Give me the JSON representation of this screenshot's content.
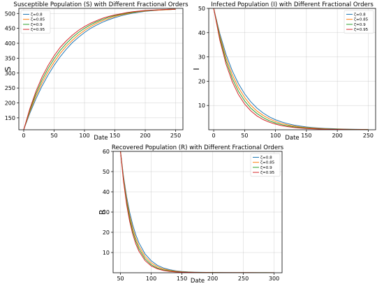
{
  "chart_data": [
    {
      "type": "line",
      "title": "Susceptible Population (S) with Different Fractional Orders",
      "xlabel": "Date",
      "ylabel": "S",
      "xlim": [
        -8,
        262
      ],
      "ylim": [
        110,
        517
      ],
      "xticks": [
        0,
        50,
        100,
        150,
        200,
        250
      ],
      "yticks": [
        150,
        200,
        250,
        300,
        350,
        400,
        450,
        500
      ],
      "grid": true,
      "legend": "top-left",
      "x": [
        0,
        10,
        20,
        30,
        40,
        50,
        60,
        70,
        80,
        90,
        100,
        110,
        120,
        130,
        140,
        150,
        160,
        170,
        180,
        190,
        200,
        210,
        220,
        230,
        240,
        250
      ],
      "series": [
        {
          "name": "ζ=0.8",
          "color": "#1f77b4",
          "values": [
            110,
            165,
            213,
            256,
            293,
            326,
            355,
            380,
            402,
            420,
            436,
            450,
            461,
            471,
            479,
            486,
            492,
            497,
            501,
            504,
            507,
            509,
            511,
            512,
            513,
            514
          ]
        },
        {
          "name": "ζ=0.85",
          "color": "#ff7f0e",
          "values": [
            110,
            170,
            222,
            266,
            304,
            337,
            366,
            390,
            410,
            428,
            443,
            456,
            467,
            476,
            483,
            490,
            495,
            499,
            503,
            506,
            508,
            510,
            511,
            512,
            513,
            514
          ]
        },
        {
          "name": "ζ=0.9",
          "color": "#2ca02c",
          "values": [
            110,
            175,
            230,
            276,
            315,
            348,
            376,
            399,
            419,
            436,
            450,
            462,
            472,
            480,
            487,
            493,
            497,
            501,
            504,
            507,
            509,
            510,
            512,
            513,
            514,
            514
          ]
        },
        {
          "name": "ζ=0.95",
          "color": "#d62728",
          "values": [
            110,
            180,
            238,
            286,
            325,
            358,
            386,
            408,
            427,
            443,
            456,
            467,
            476,
            484,
            490,
            495,
            499,
            503,
            506,
            508,
            510,
            511,
            512,
            513,
            514,
            514
          ]
        }
      ]
    },
    {
      "type": "line",
      "title": "Infected Population (I) with Different Fractional Orders",
      "xlabel": "Date",
      "ylabel": "I",
      "xlim": [
        -8,
        262
      ],
      "ylim": [
        0,
        50
      ],
      "xticks": [
        0,
        50,
        100,
        150,
        200,
        250
      ],
      "yticks": [
        10,
        20,
        30,
        40,
        50
      ],
      "grid": true,
      "legend": "top-right",
      "x": [
        0,
        10,
        20,
        30,
        40,
        50,
        60,
        70,
        80,
        90,
        100,
        110,
        120,
        130,
        140,
        150,
        160,
        170,
        180,
        190,
        200,
        210,
        220,
        230,
        240,
        250
      ],
      "series": [
        {
          "name": "ζ=0.8",
          "color": "#1f77b4",
          "values": [
            50,
            39.5,
            31.0,
            24.3,
            19.0,
            14.8,
            11.5,
            8.9,
            6.9,
            5.3,
            4.1,
            3.2,
            2.5,
            1.9,
            1.5,
            1.15,
            0.9,
            0.7,
            0.55,
            0.45,
            0.36,
            0.29,
            0.23,
            0.19,
            0.16,
            0.13
          ]
        },
        {
          "name": "ζ=0.85",
          "color": "#ff7f0e",
          "values": [
            50,
            38.6,
            29.6,
            22.7,
            17.4,
            13.3,
            10.1,
            7.7,
            5.9,
            4.5,
            3.4,
            2.6,
            2.0,
            1.5,
            1.15,
            0.9,
            0.7,
            0.54,
            0.42,
            0.33,
            0.27,
            0.22,
            0.18,
            0.15,
            0.12,
            0.1
          ]
        },
        {
          "name": "ζ=0.9",
          "color": "#2ca02c",
          "values": [
            50,
            37.7,
            28.3,
            21.2,
            15.9,
            11.9,
            8.9,
            6.7,
            5.0,
            3.7,
            2.8,
            2.1,
            1.6,
            1.2,
            0.9,
            0.68,
            0.52,
            0.4,
            0.31,
            0.25,
            0.2,
            0.16,
            0.13,
            0.11,
            0.09,
            0.08
          ]
        },
        {
          "name": "ζ=0.95",
          "color": "#d62728",
          "values": [
            50,
            36.8,
            27.0,
            19.8,
            14.5,
            10.6,
            7.8,
            5.7,
            4.2,
            3.1,
            2.3,
            1.7,
            1.25,
            0.92,
            0.68,
            0.5,
            0.38,
            0.29,
            0.22,
            0.17,
            0.14,
            0.11,
            0.09,
            0.07,
            0.06,
            0.05
          ]
        }
      ]
    },
    {
      "type": "line",
      "title": "Recovered Population (R) with Different Fractional Orders",
      "xlabel": "Date",
      "ylabel": "R",
      "xlim": [
        38,
        313
      ],
      "ylim": [
        0,
        60
      ],
      "xticks": [
        50,
        100,
        150,
        200,
        250,
        300
      ],
      "yticks": [
        10,
        20,
        30,
        40,
        50,
        60
      ],
      "grid": true,
      "legend": "top-right",
      "x": [
        50,
        55,
        60,
        65,
        70,
        75,
        80,
        90,
        100,
        110,
        120,
        130,
        140,
        150,
        160,
        170,
        180,
        190,
        200,
        220,
        240,
        260,
        280,
        300
      ],
      "series": [
        {
          "name": "ζ=0.8",
          "color": "#1f77b4",
          "values": [
            60,
            47.5,
            37.6,
            29.8,
            23.6,
            18.7,
            14.8,
            9.3,
            5.9,
            3.7,
            2.35,
            1.5,
            0.95,
            0.62,
            0.41,
            0.28,
            0.2,
            0.15,
            0.12,
            0.08,
            0.06,
            0.05,
            0.04,
            0.03
          ]
        },
        {
          "name": "ζ=0.85",
          "color": "#ff7f0e",
          "values": [
            60,
            46.7,
            36.3,
            28.2,
            21.9,
            17.0,
            13.2,
            8.0,
            4.9,
            3.0,
            1.85,
            1.15,
            0.73,
            0.47,
            0.31,
            0.21,
            0.15,
            0.11,
            0.09,
            0.06,
            0.05,
            0.04,
            0.03,
            0.03
          ]
        },
        {
          "name": "ζ=0.9",
          "color": "#2ca02c",
          "values": [
            60,
            45.8,
            35.0,
            26.7,
            20.4,
            15.6,
            11.9,
            6.9,
            4.0,
            2.35,
            1.4,
            0.85,
            0.52,
            0.33,
            0.22,
            0.15,
            0.11,
            0.08,
            0.07,
            0.05,
            0.04,
            0.03,
            0.03,
            0.02
          ]
        },
        {
          "name": "ζ=0.95",
          "color": "#d62728",
          "values": [
            60,
            45.0,
            33.7,
            25.3,
            19.0,
            14.2,
            10.7,
            6.0,
            3.4,
            1.95,
            1.12,
            0.66,
            0.4,
            0.25,
            0.17,
            0.12,
            0.09,
            0.07,
            0.06,
            0.04,
            0.03,
            0.03,
            0.02,
            0.02
          ]
        }
      ]
    }
  ]
}
